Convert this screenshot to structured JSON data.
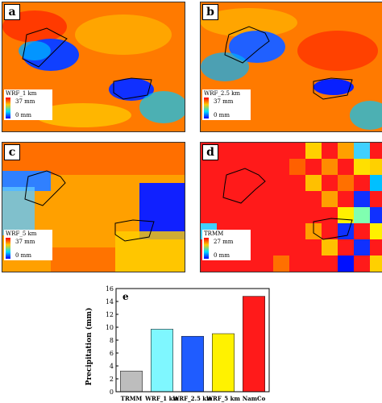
{
  "panels": [
    {
      "label": "a",
      "legend_name": "WRF_1 km",
      "legend_max": "37 mm",
      "legend_min": "0 mm"
    },
    {
      "label": "b",
      "legend_name": "WRF_2.5 km",
      "legend_max": "37 mm",
      "legend_min": "0 mm"
    },
    {
      "label": "c",
      "legend_name": "WRF_5 km",
      "legend_max": "37 mm",
      "legend_min": "0 mm"
    },
    {
      "label": "d",
      "legend_name": "TRMM",
      "legend_max": "27 mm",
      "legend_min": "0 mm"
    }
  ],
  "colors": {
    "high": "#ff0000",
    "mid": "#ff8c00",
    "low": "#0000ff",
    "TRMM": "#bdbdbd",
    "WRF_1 km": "#7ff7ff",
    "WRF_2.5 km": "#1f5cff",
    "WRF_5 km": "#fff200",
    "NamCo": "#ff1a1a"
  },
  "chart_data": {
    "type": "bar",
    "panel_label": "e",
    "categories": [
      "TRMM",
      "WRF_1 km",
      "WRF_2.5 km",
      "WRF_5 km",
      "NamCo"
    ],
    "values": [
      3.2,
      9.7,
      8.6,
      9.0,
      14.8
    ],
    "ylabel": "Precipitation (mm)",
    "ylim": [
      0,
      16
    ],
    "yticks": [
      0,
      2,
      4,
      6,
      8,
      10,
      12,
      14,
      16
    ],
    "grid": false
  }
}
